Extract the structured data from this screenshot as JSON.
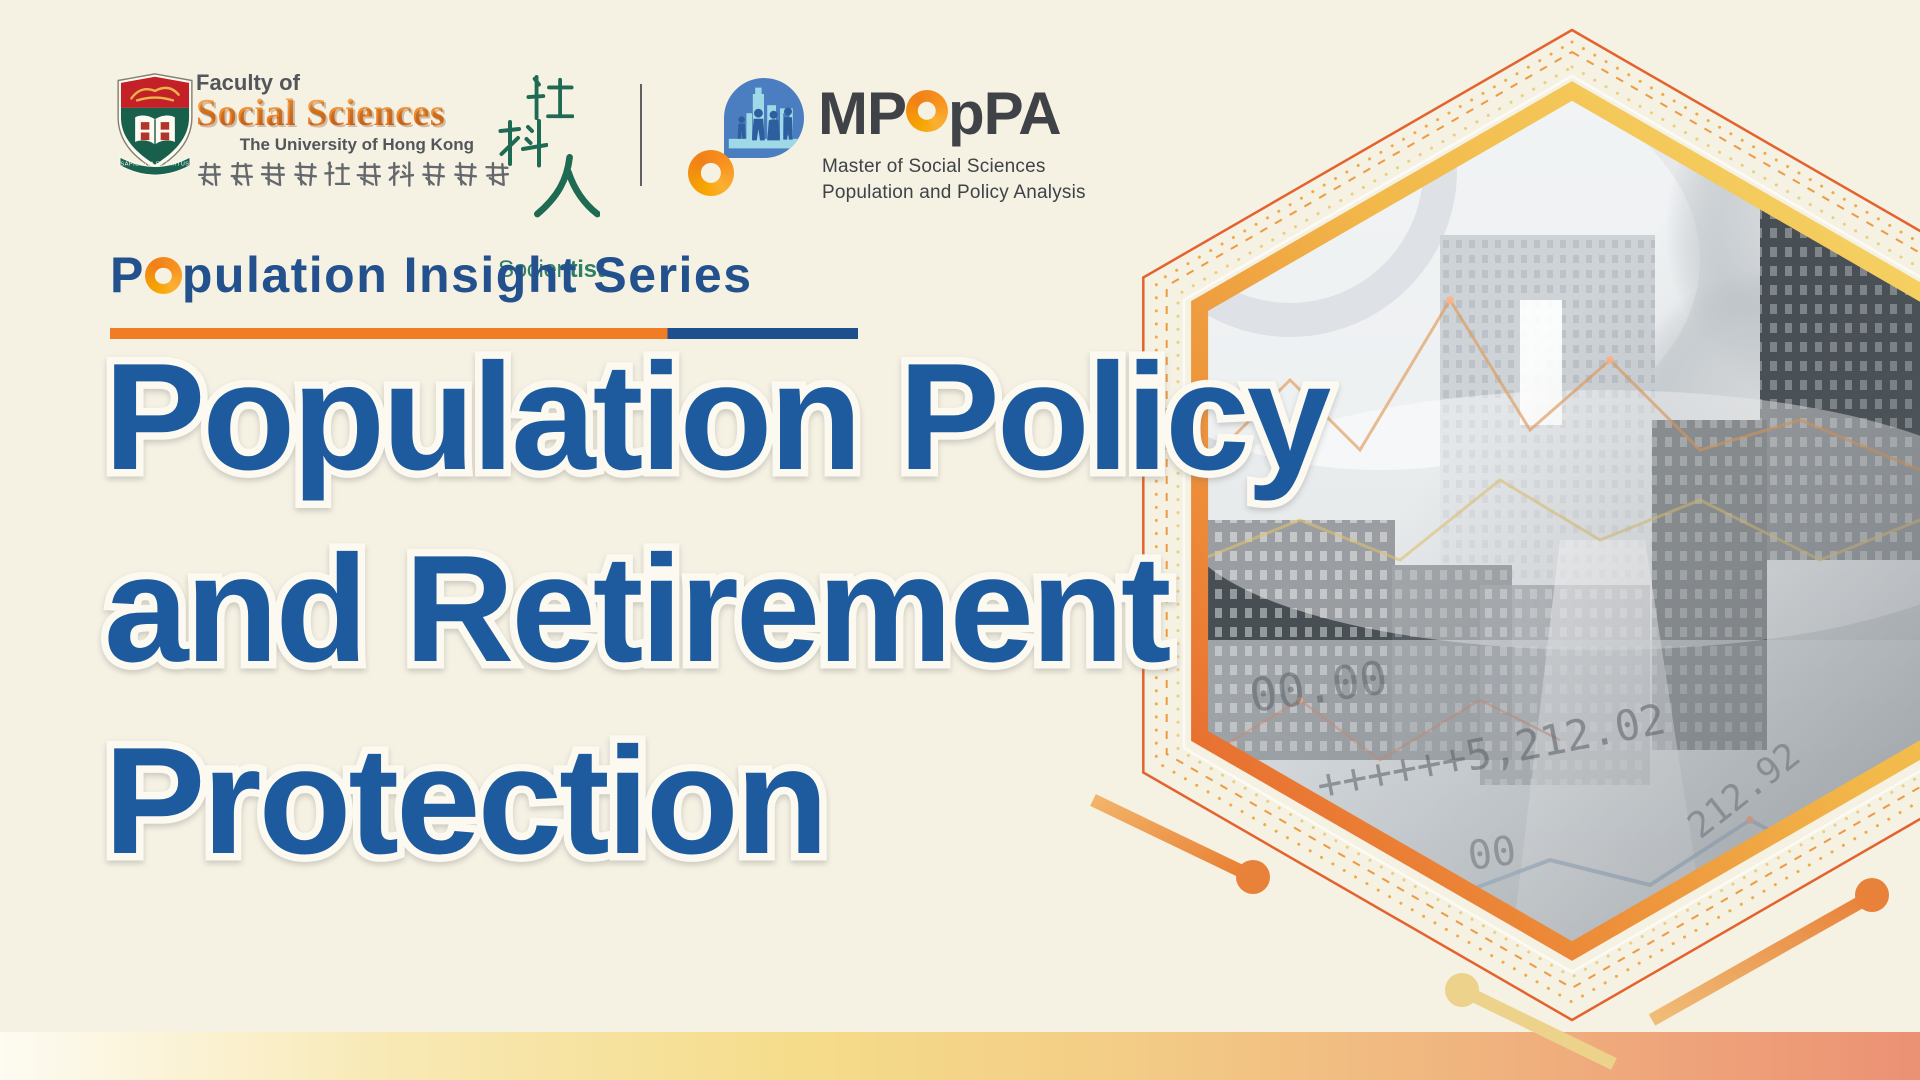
{
  "page": {
    "background": "#f5f1e3",
    "accent_orange": "#ef7d24",
    "navy": "#1f4e8c",
    "title_blue": "#1d5a9e",
    "green": "#2e7f63"
  },
  "header": {
    "hku": {
      "faculty_of": "Faculty of",
      "name": "Social Sciences",
      "university": "The University of Hong Kong",
      "chinese": "香港大學社會科學學院",
      "motto": "SAPIENTIA ET VIRTUS"
    },
    "socientist": {
      "characters": "社科人",
      "name_regular": "Socien",
      "name_bold": "tist"
    },
    "mpoppa": {
      "acronym_prefix": "MP",
      "acronym_suffix": "pPA",
      "line1": "Master of Social Sciences",
      "line2": "Population and Policy Analysis"
    }
  },
  "series": {
    "prefix": "P",
    "suffix": "pulation Insight Series",
    "full": "Population Insight Series"
  },
  "title": {
    "line1": "Population Policy",
    "line2": "and Retirement",
    "line3": "Protection"
  },
  "photo": {
    "numbers": {
      "n1": "00.00",
      "n2": "++++++5,212.02",
      "n3": "00",
      "n4": "212.92"
    }
  }
}
